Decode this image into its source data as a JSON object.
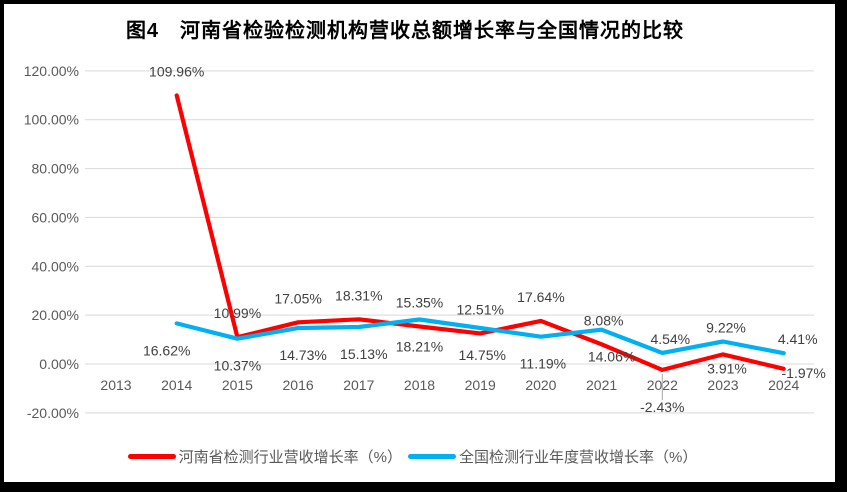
{
  "chart_data": {
    "type": "line",
    "title": "图4　河南省检验检测机构营收总额增长率与全国情况的比较",
    "categories": [
      "2013",
      "2014",
      "2015",
      "2016",
      "2017",
      "2018",
      "2019",
      "2020",
      "2021",
      "2022",
      "2023",
      "2024"
    ],
    "series": [
      {
        "id": "henan",
        "name": "河南省检测行业营收增长率（%）",
        "color": "#FF0000",
        "values": [
          null,
          109.96,
          10.99,
          17.05,
          18.31,
          15.35,
          12.51,
          17.64,
          8.08,
          -2.43,
          3.91,
          -1.97
        ],
        "label_sides": [
          null,
          "above",
          "above",
          "above",
          "above",
          "above",
          "above",
          "above",
          "above",
          "below-leader",
          "below-near",
          "right"
        ],
        "label_dx": [
          0,
          0,
          0,
          0,
          0,
          0,
          0,
          0,
          2,
          0,
          4,
          20
        ]
      },
      {
        "id": "national",
        "name": "全国检测行业年度营收增长率（%）",
        "color": "#00B0F0",
        "values": [
          null,
          16.62,
          10.37,
          14.73,
          15.13,
          18.21,
          14.75,
          11.19,
          14.06,
          4.54,
          9.22,
          4.41
        ],
        "label_sides": [
          null,
          "below",
          "below",
          "below",
          "below",
          "below",
          "below",
          "below",
          "below",
          "above-near",
          "above-near",
          "above-near"
        ],
        "label_dx": [
          0,
          -10,
          0,
          5,
          5,
          0,
          2,
          2,
          10,
          8,
          3,
          14
        ]
      }
    ],
    "y_axis": {
      "min": -20,
      "max": 120,
      "step": 20,
      "tick_labels": [
        "120.00%",
        "100.00%",
        "80.00%",
        "60.00%",
        "40.00%",
        "20.00%",
        "0.00%",
        "-20.00%"
      ]
    },
    "label_format": "0.00%",
    "grid": true,
    "legend_position": "bottom"
  },
  "colors": {
    "grid": "#D9D9D9",
    "axis_text": "#595959",
    "data_label_text": "#404040",
    "leader_line": "#A6A6A6",
    "frame": "#000000",
    "background": "#FFFFFF"
  }
}
